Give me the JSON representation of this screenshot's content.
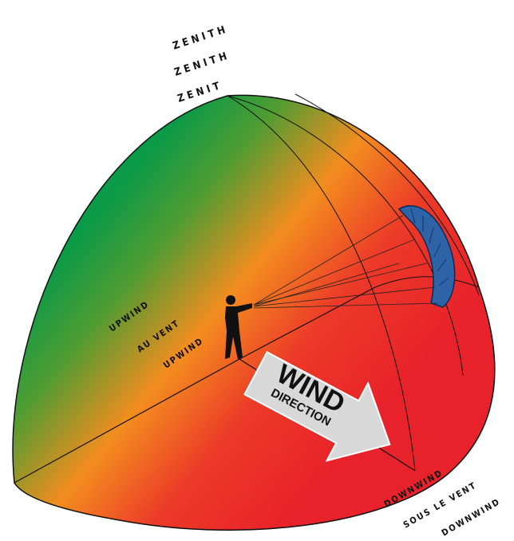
{
  "zenith_labels": [
    "ZENITH",
    "ZENITH",
    "ZENIT"
  ],
  "upwind_labels": [
    "UPWIND",
    "AU VENT",
    "UPWIND"
  ],
  "wind_arrow": {
    "title": "WIND",
    "subtitle": "DIRECTION"
  },
  "downwind_labels": [
    "DOWNWIND",
    "SOUS LE VENT",
    "DOWNWIND"
  ]
}
